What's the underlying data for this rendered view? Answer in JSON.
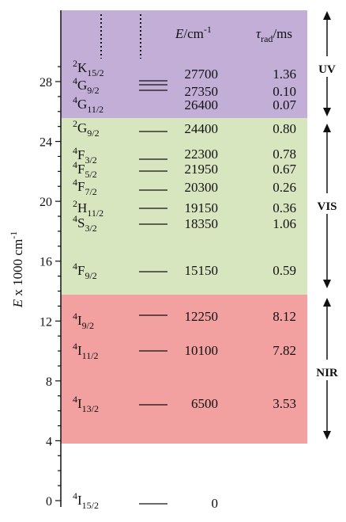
{
  "axis": {
    "label_main": "E",
    "label_rest": " x 1000 cm",
    "label_exp": "-1",
    "ticks": [
      "0",
      "4",
      "8",
      "12",
      "16",
      "20",
      "24",
      "28"
    ]
  },
  "header": {
    "energy_symbol": "E",
    "energy_unit": "/cm",
    "energy_unit_exp": "-1",
    "tau_symbol": "τ",
    "tau_sub": "rad",
    "tau_unit": "/ms"
  },
  "regions": [
    {
      "name": "UV",
      "color": "#c3aed8"
    },
    {
      "name": "VIS",
      "color": "#d8e6c0"
    },
    {
      "name": "NIR",
      "color": "#f2a0a0"
    }
  ],
  "levels": [
    {
      "term": "K",
      "mult": "2",
      "j": "15/2",
      "energy": "27700",
      "tau": "1.36"
    },
    {
      "term": "G",
      "mult": "4",
      "j": "9/2",
      "energy": "27350",
      "tau": "0.10"
    },
    {
      "term": "G",
      "mult": "4",
      "j": "11/2",
      "energy": "26400",
      "tau": "0.07"
    },
    {
      "term": "G",
      "mult": "2",
      "j": "9/2",
      "energy": "24400",
      "tau": "0.80"
    },
    {
      "term": "F",
      "mult": "4",
      "j": "3/2",
      "energy": "22300",
      "tau": "0.78"
    },
    {
      "term": "F",
      "mult": "4",
      "j": "5/2",
      "energy": "21950",
      "tau": "0.67"
    },
    {
      "term": "F",
      "mult": "4",
      "j": "7/2",
      "energy": "20300",
      "tau": "0.26"
    },
    {
      "term": "H",
      "mult": "2",
      "j": "11/2",
      "energy": "19150",
      "tau": "0.36"
    },
    {
      "term": "S",
      "mult": "4",
      "j": "3/2",
      "energy": "18350",
      "tau": "1.06"
    },
    {
      "term": "F",
      "mult": "4",
      "j": "9/2",
      "energy": "15150",
      "tau": "0.59"
    },
    {
      "term": "I",
      "mult": "4",
      "j": "9/2",
      "energy": "12250",
      "tau": "8.12"
    },
    {
      "term": "I",
      "mult": "4",
      "j": "11/2",
      "energy": "10100",
      "tau": "7.82"
    },
    {
      "term": "I",
      "mult": "4",
      "j": "13/2",
      "energy": "6500",
      "tau": "3.53"
    },
    {
      "term": "I",
      "mult": "4",
      "j": "15/2",
      "energy": "0",
      "tau": ""
    }
  ]
}
